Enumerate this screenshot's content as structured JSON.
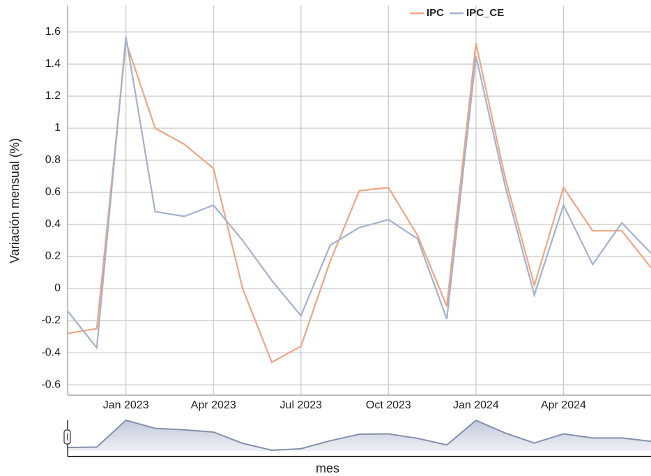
{
  "chart_data": {
    "type": "line",
    "y_label": "Variación mensual (%)",
    "x_label": "mes",
    "x": [
      "2022-11",
      "2022-12",
      "2023-01",
      "2023-02",
      "2023-03",
      "2023-04",
      "2023-05",
      "2023-06",
      "2023-07",
      "2023-08",
      "2023-09",
      "2023-10",
      "2023-11",
      "2023-12",
      "2024-01",
      "2024-02",
      "2024-03",
      "2024-04",
      "2024-05",
      "2024-06",
      "2024-07"
    ],
    "series": [
      {
        "name": "IPC",
        "color": "#f0a582",
        "values": [
          -0.28,
          -0.25,
          1.54,
          1.0,
          0.9,
          0.75,
          0.0,
          -0.46,
          -0.36,
          0.17,
          0.61,
          0.63,
          0.33,
          -0.11,
          1.53,
          0.69,
          0.02,
          0.63,
          0.36,
          0.36,
          0.13
        ]
      },
      {
        "name": "IPC_CE",
        "color": "#a3b0cf",
        "values": [
          -0.14,
          -0.37,
          1.57,
          0.48,
          0.45,
          0.52,
          0.3,
          0.05,
          -0.17,
          0.27,
          0.38,
          0.43,
          0.31,
          -0.19,
          1.45,
          0.64,
          -0.04,
          0.52,
          0.15,
          0.41,
          0.22
        ]
      }
    ],
    "xlim": [
      "2022-11",
      "2024-07"
    ],
    "xticks": [
      {
        "value": "2023-01",
        "label": "Jan 2023"
      },
      {
        "value": "2023-04",
        "label": "Apr 2023"
      },
      {
        "value": "2023-07",
        "label": "Jul 2023"
      },
      {
        "value": "2023-10",
        "label": "Oct 2023"
      },
      {
        "value": "2024-01",
        "label": "Jan 2024"
      },
      {
        "value": "2024-04",
        "label": "Apr 2024"
      }
    ],
    "ylim": [
      -0.665,
      1.765
    ],
    "yticks": [
      -0.6,
      -0.4,
      -0.2,
      0,
      0.2,
      0.4,
      0.6,
      0.8,
      1,
      1.2,
      1.4,
      1.6
    ],
    "grid": true
  }
}
